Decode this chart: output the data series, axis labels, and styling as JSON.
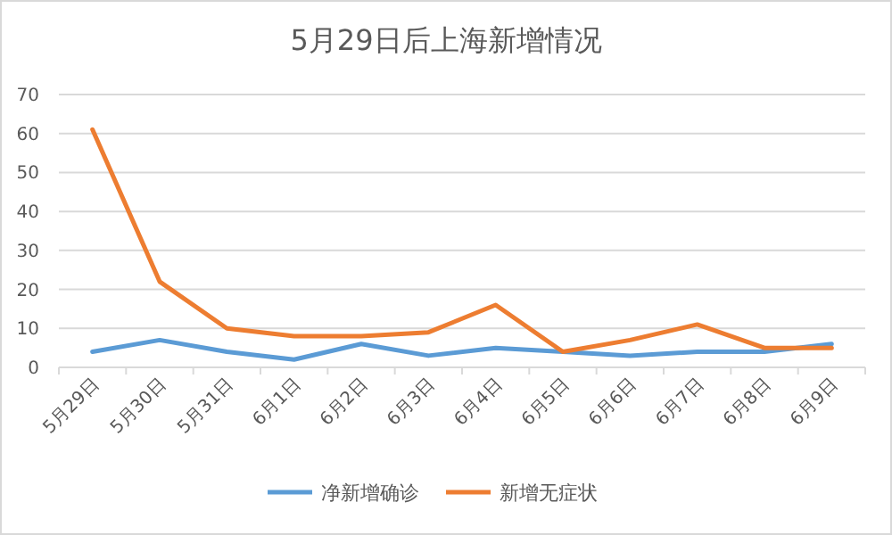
{
  "chart_data": {
    "type": "line",
    "title": "5月29日后上海新增情况",
    "categories": [
      "5月29日",
      "5月30日",
      "5月31日",
      "6月1日",
      "6月2日",
      "6月3日",
      "6月4日",
      "6月5日",
      "6月6日",
      "6月7日",
      "6月8日",
      "6月9日"
    ],
    "series": [
      {
        "name": "净新增确诊",
        "color": "#5b9bd5",
        "values": [
          4,
          7,
          4,
          2,
          6,
          3,
          5,
          4,
          3,
          4,
          4,
          6
        ]
      },
      {
        "name": "新增无症状",
        "color": "#ed7d31",
        "values": [
          61,
          22,
          10,
          8,
          8,
          9,
          16,
          4,
          7,
          11,
          5,
          5
        ]
      }
    ],
    "ylim": [
      0,
      70
    ],
    "yticks": [
      0,
      10,
      20,
      30,
      40,
      50,
      60,
      70
    ],
    "grid": "y",
    "legend": "bottom",
    "marker": "none",
    "line_style": "solid"
  }
}
